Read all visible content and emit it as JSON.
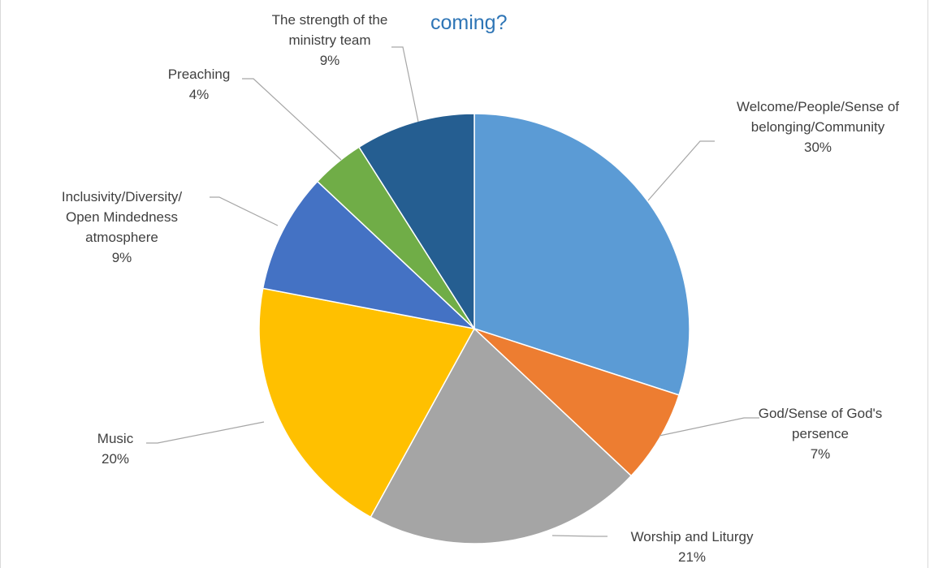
{
  "chart_data": {
    "type": "pie",
    "title": "coming?",
    "start_angle_deg": 0,
    "direction": "clockwise",
    "slices": [
      {
        "label": "Welcome/People/Sense of belonging/Community",
        "lines": [
          "Welcome/People/Sense of",
          "belonging/Community"
        ],
        "value": 30,
        "percent_label": "30%",
        "color": "#5b9bd5"
      },
      {
        "label": "God/Sense of God's persence",
        "lines": [
          "God/Sense of God's",
          "persence"
        ],
        "value": 7,
        "percent_label": "7%",
        "color": "#ed7d31"
      },
      {
        "label": "Worship and Liturgy",
        "lines": [
          "Worship and Liturgy"
        ],
        "value": 21,
        "percent_label": "21%",
        "color": "#a5a5a5"
      },
      {
        "label": "Music",
        "lines": [
          "Music"
        ],
        "value": 20,
        "percent_label": "20%",
        "color": "#ffc000"
      },
      {
        "label": "Inclusivity/Diversity/ Open Mindedness atmosphere",
        "lines": [
          "Inclusivity/Diversity/",
          "Open Mindedness",
          "atmosphere"
        ],
        "value": 9,
        "percent_label": "9%",
        "color": "#4472c4"
      },
      {
        "label": "Preaching",
        "lines": [
          "Preaching"
        ],
        "value": 4,
        "percent_label": "4%",
        "color": "#70ad47"
      },
      {
        "label": "The strength of the ministry team",
        "lines": [
          "The strength of the",
          "ministry team"
        ],
        "value": 9,
        "percent_label": "9%",
        "color": "#255e91"
      }
    ],
    "legend": "none",
    "data_labels": "outside with leader lines"
  }
}
